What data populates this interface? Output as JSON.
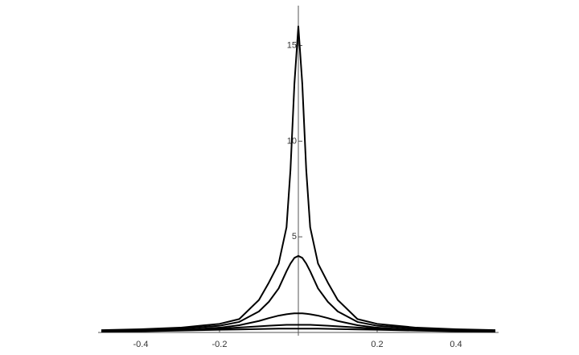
{
  "chart_data": {
    "type": "line",
    "x": [
      -0.5,
      -0.4,
      -0.3,
      -0.2,
      -0.15,
      -0.1,
      -0.075,
      -0.05,
      -0.03,
      -0.02,
      -0.01,
      0,
      0.01,
      0.02,
      0.03,
      0.05,
      0.075,
      0.1,
      0.15,
      0.2,
      0.3,
      0.4,
      0.5
    ],
    "series": [
      {
        "color": "#000000",
        "values": [
          0.12,
          0.17,
          0.25,
          0.45,
          0.7,
          1.7,
          2.6,
          3.6,
          5.5,
          8.5,
          13,
          16,
          13,
          8.5,
          5.5,
          3.6,
          2.6,
          1.7,
          0.7,
          0.45,
          0.25,
          0.17,
          0.12
        ]
      },
      {
        "color": "#000000",
        "values": [
          0.09,
          0.12,
          0.2,
          0.35,
          0.55,
          1.1,
          1.6,
          2.3,
          3.2,
          3.6,
          3.9,
          4,
          3.9,
          3.6,
          3.2,
          2.3,
          1.6,
          1.1,
          0.55,
          0.35,
          0.2,
          0.12,
          0.09
        ]
      },
      {
        "color": "#000000",
        "values": [
          0.06,
          0.08,
          0.13,
          0.25,
          0.38,
          0.6,
          0.75,
          0.88,
          0.95,
          0.98,
          1,
          1,
          1,
          0.98,
          0.95,
          0.88,
          0.75,
          0.6,
          0.38,
          0.25,
          0.13,
          0.08,
          0.06
        ]
      },
      {
        "color": "#000000",
        "values": [
          0.05,
          0.08,
          0.12,
          0.2,
          0.26,
          0.32,
          0.35,
          0.38,
          0.4,
          0.4,
          0.4,
          0.4,
          0.4,
          0.4,
          0.4,
          0.38,
          0.35,
          0.32,
          0.26,
          0.2,
          0.12,
          0.08,
          0.05
        ]
      },
      {
        "color": "#000000",
        "values": [
          0.04,
          0.06,
          0.1,
          0.14,
          0.16,
          0.18,
          0.19,
          0.2,
          0.2,
          0.2,
          0.2,
          0.2,
          0.2,
          0.2,
          0.2,
          0.2,
          0.19,
          0.18,
          0.16,
          0.14,
          0.1,
          0.06,
          0.04
        ]
      }
    ],
    "xlim": [
      -0.5,
      0.5
    ],
    "ylim": [
      0,
      17
    ],
    "xticks": [
      -0.4,
      -0.2,
      0.2,
      0.4
    ],
    "yticks": [
      5,
      10,
      15
    ]
  }
}
